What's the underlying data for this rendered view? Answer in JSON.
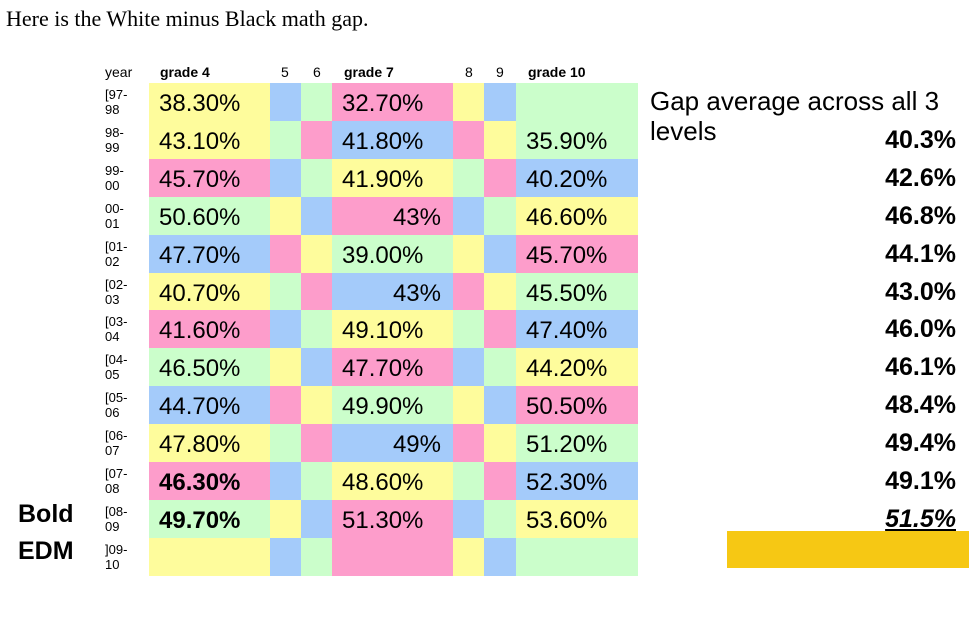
{
  "intro": "Here is the White minus Black math gap.",
  "headers": {
    "year": "year",
    "g4": "grade 4",
    "c5": "5",
    "c6": "6",
    "g7": "grade 7",
    "c8": "8",
    "c9": "9",
    "g10": "grade 10"
  },
  "gap_header": "Gap average across all 3 levels",
  "side_labels": [
    "Bold",
    "EDM"
  ],
  "colors": {
    "yellow": "#fefc9c",
    "blue": "#a4cbfa",
    "green": "#cbfecb",
    "pink": "#fd9dcb",
    "highlight": "#f6c814"
  },
  "chart_data": {
    "type": "table",
    "title": "",
    "columns": [
      "year",
      "grade 4",
      "grade 7",
      "grade 10",
      "Gap average across all 3 levels"
    ],
    "rows": [
      {
        "year": "[97-\n98",
        "g4": "38.30%",
        "g7": "32.70%",
        "g10": "",
        "avg": ""
      },
      {
        "year": "98-\n99",
        "g4": "43.10%",
        "g7": "41.80%",
        "g10": "35.90%",
        "avg": "40.3%"
      },
      {
        "year": "99-\n00",
        "g4": "45.70%",
        "g7": "41.90%",
        "g10": "40.20%",
        "avg": "42.6%"
      },
      {
        "year": "00-\n01",
        "g4": "50.60%",
        "g7": "43%",
        "g10": "46.60%",
        "avg": "46.8%"
      },
      {
        "year": "[01-\n02",
        "g4": "47.70%",
        "g7": "39.00%",
        "g10": "45.70%",
        "avg": "44.1%"
      },
      {
        "year": "[02-\n03",
        "g4": "40.70%",
        "g7": "43%",
        "g10": "45.50%",
        "avg": "43.0%"
      },
      {
        "year": "[03-\n04",
        "g4": "41.60%",
        "g7": "49.10%",
        "g10": "47.40%",
        "avg": "46.0%"
      },
      {
        "year": "[04-\n05",
        "g4": "46.50%",
        "g7": "47.70%",
        "g10": "44.20%",
        "avg": "46.1%"
      },
      {
        "year": "[05-\n06",
        "g4": "44.70%",
        "g7": "49.90%",
        "g10": "50.50%",
        "avg": "48.4%"
      },
      {
        "year": "[06-\n07",
        "g4": "47.80%",
        "g7": "49%",
        "g10": "51.20%",
        "avg": "49.4%"
      },
      {
        "year": "[07-\n08",
        "g4": "46.30%",
        "g7": "48.60%",
        "g10": "52.30%",
        "avg": "49.1%"
      },
      {
        "year": "[08-\n09",
        "g4": "49.70%",
        "g7": "51.30%",
        "g10": "53.60%",
        "avg": "51.5%"
      },
      {
        "year": "]09-\n10",
        "g4": "",
        "g7": "",
        "g10": "",
        "avg": ""
      }
    ],
    "bold_grade4_rows": [
      10,
      11
    ],
    "right_aligned_grade7_rows": [
      3,
      5,
      9
    ],
    "highlighted_avg_row": 11
  }
}
